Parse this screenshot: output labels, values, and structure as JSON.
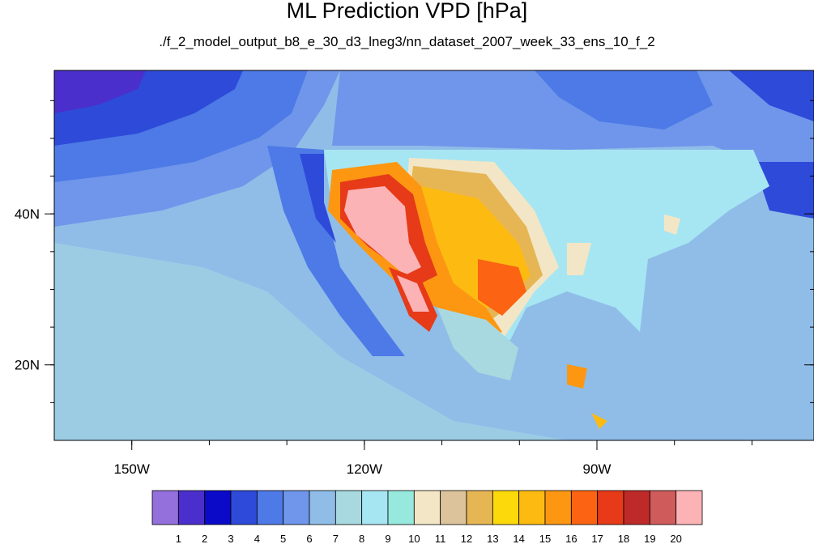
{
  "title": "ML Prediction VPD [hPa]",
  "subtitle": "./f_2_model_output_b8_e_30_d3_lneg3/nn_dataset_2007_week_33_ens_10_f_2",
  "map": {
    "lon_range": [
      -160,
      -62
    ],
    "lat_range": [
      10,
      59
    ],
    "lon_ticks": [
      {
        "value": -150,
        "label": "150W"
      },
      {
        "value": -120,
        "label": "120W"
      },
      {
        "value": -90,
        "label": "90W"
      }
    ],
    "lat_ticks": [
      {
        "value": 40,
        "label": "40N"
      },
      {
        "value": 20,
        "label": "20N"
      }
    ]
  },
  "colorbar": {
    "colors": [
      "#9370db",
      "#4b2fcc",
      "#0a0ac8",
      "#2e4ad9",
      "#4d7ae6",
      "#6f96ea",
      "#8fbde8",
      "#a8d9e0",
      "#a6e6f2",
      "#97e8dd",
      "#f2e6c6",
      "#dcc39b",
      "#e6b654",
      "#fcd90a",
      "#fdbb12",
      "#fd9712",
      "#fc6312",
      "#e63a18",
      "#be2a28",
      "#d05b5b",
      "#fcb3b6"
    ],
    "labels": [
      "1",
      "2",
      "3",
      "4",
      "5",
      "6",
      "7",
      "8",
      "9",
      "10",
      "11",
      "12",
      "13",
      "14",
      "15",
      "16",
      "17",
      "18",
      "19",
      "20"
    ]
  }
}
